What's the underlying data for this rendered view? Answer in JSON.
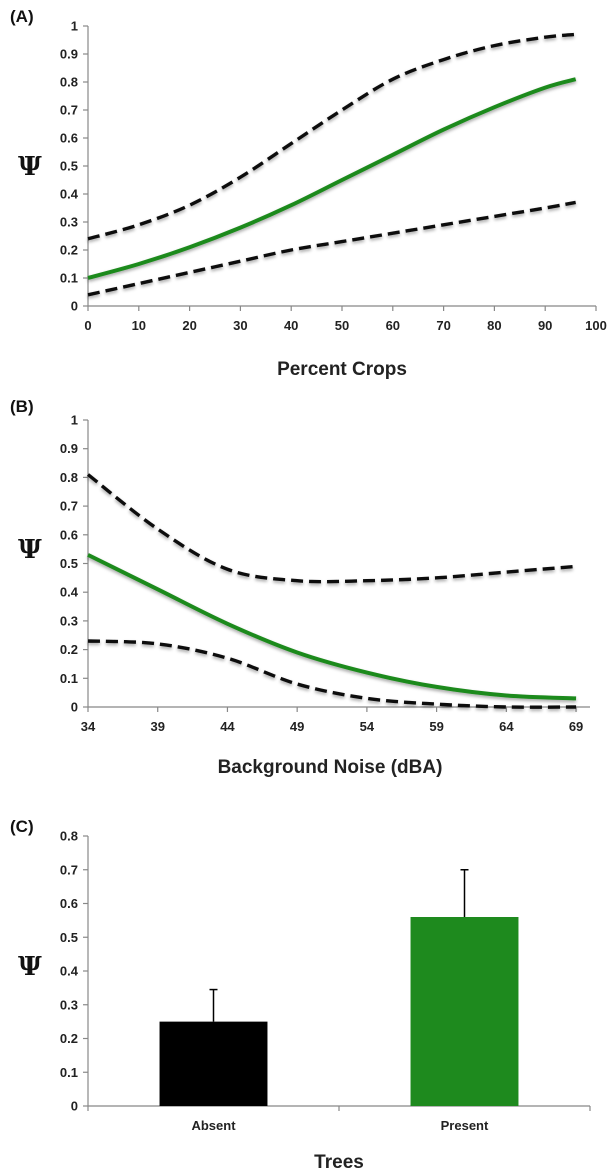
{
  "chart_data": [
    {
      "panel_label": "(A)",
      "type": "line",
      "xlabel": "Percent Crops",
      "ylabel": "Ψ",
      "xlim": [
        0,
        100
      ],
      "ylim": [
        0,
        1
      ],
      "xticks": [
        0,
        10,
        20,
        30,
        40,
        50,
        60,
        70,
        80,
        90,
        100
      ],
      "yticks": [
        0,
        0.1,
        0.2,
        0.3,
        0.4,
        0.5,
        0.6,
        0.7,
        0.8,
        0.9,
        1
      ],
      "grid": false,
      "x": [
        0,
        10,
        20,
        30,
        40,
        50,
        60,
        70,
        80,
        90,
        96
      ],
      "series": [
        {
          "style": "solid",
          "color": "#1e8a1e",
          "values": [
            0.1,
            0.15,
            0.21,
            0.28,
            0.36,
            0.45,
            0.54,
            0.63,
            0.71,
            0.78,
            0.81
          ]
        },
        {
          "style": "dashed",
          "color": "#111111",
          "values": [
            0.24,
            0.29,
            0.36,
            0.46,
            0.58,
            0.7,
            0.81,
            0.88,
            0.93,
            0.96,
            0.97
          ]
        },
        {
          "style": "dashed",
          "color": "#111111",
          "values": [
            0.04,
            0.08,
            0.12,
            0.16,
            0.2,
            0.23,
            0.26,
            0.29,
            0.32,
            0.35,
            0.37
          ]
        }
      ]
    },
    {
      "panel_label": "(B)",
      "type": "line",
      "xlabel": "Background Noise  (dBA)",
      "ylabel": "Ψ",
      "xlim": [
        34,
        70
      ],
      "ylim": [
        0,
        1
      ],
      "xticks": [
        34,
        39,
        44,
        49,
        54,
        59,
        64,
        69
      ],
      "yticks": [
        0,
        0.1,
        0.2,
        0.3,
        0.4,
        0.5,
        0.6,
        0.7,
        0.8,
        0.9,
        1
      ],
      "grid": false,
      "x": [
        34,
        39,
        44,
        49,
        54,
        59,
        64,
        69
      ],
      "series": [
        {
          "style": "solid",
          "color": "#1e8a1e",
          "values": [
            0.53,
            0.41,
            0.29,
            0.19,
            0.12,
            0.07,
            0.04,
            0.03
          ]
        },
        {
          "style": "dashed",
          "color": "#111111",
          "values": [
            0.81,
            0.62,
            0.48,
            0.44,
            0.44,
            0.45,
            0.47,
            0.49
          ]
        },
        {
          "style": "dashed",
          "color": "#111111",
          "values": [
            0.23,
            0.22,
            0.17,
            0.08,
            0.03,
            0.01,
            0.0,
            0.0
          ]
        }
      ]
    },
    {
      "panel_label": "(C)",
      "type": "bar",
      "xlabel": "Trees",
      "ylabel": "Ψ",
      "ylim": [
        0,
        0.8
      ],
      "yticks": [
        0,
        0.1,
        0.2,
        0.3,
        0.4,
        0.5,
        0.6,
        0.7,
        0.8
      ],
      "grid": false,
      "categories": [
        "Absent",
        "Present"
      ],
      "values": [
        0.25,
        0.56
      ],
      "error_upper": [
        0.345,
        0.7
      ],
      "colors": [
        "#000000",
        "#1e8a1e"
      ]
    }
  ]
}
